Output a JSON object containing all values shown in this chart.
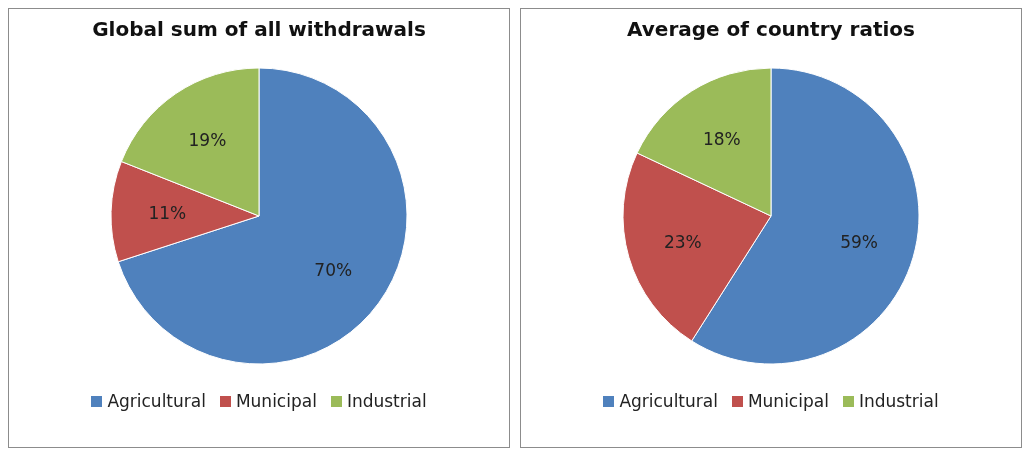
{
  "chart_data": [
    {
      "type": "pie",
      "title": "Global sum of all withdrawals",
      "categories": [
        "Agricultural",
        "Municipal",
        "Industrial"
      ],
      "values": [
        70,
        11,
        19
      ],
      "colors": [
        "#4f81bd",
        "#c0504d",
        "#9bbb59"
      ],
      "value_labels": [
        "70%",
        "11%",
        "19%"
      ],
      "legend": "bottom"
    },
    {
      "type": "pie",
      "title": "Average of country ratios",
      "categories": [
        "Agricultural",
        "Municipal",
        "Industrial"
      ],
      "values": [
        59,
        23,
        18
      ],
      "colors": [
        "#4f81bd",
        "#c0504d",
        "#9bbb59"
      ],
      "value_labels": [
        "59%",
        "23%",
        "18%"
      ],
      "legend": "bottom"
    }
  ]
}
